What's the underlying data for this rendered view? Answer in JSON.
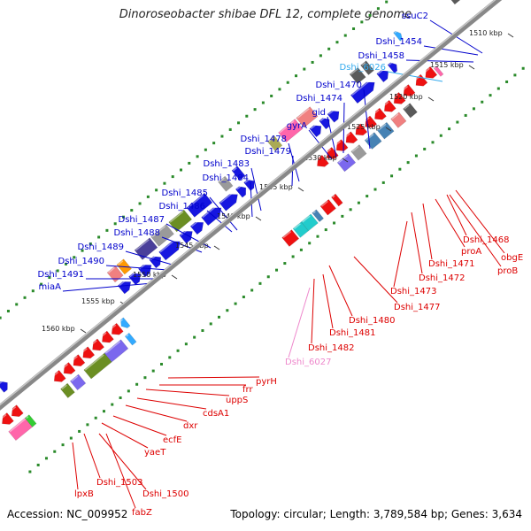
{
  "title": "Dinoroseobacter shibae DFL 12, complete genome",
  "footer": {
    "accession": "Accession: NC_009952",
    "summary": "Topology: circular; Length: 3,789,584 bp; Genes: 3,634"
  },
  "colors": {
    "forward_label": "#0000cc",
    "reverse_label": "#dd0000",
    "rna_forward_label": "#33aaee",
    "rna_reverse_label": "#ee88cc",
    "backbone": "#888888",
    "tick_dots": "#2a8a2a"
  },
  "scale_marks": [
    "1510 kbp",
    "1515 kbp",
    "1520 kbp",
    "1525 kbp",
    "1530 kbp",
    "1535 kbp",
    "1540 kbp",
    "1545 kbp",
    "1550 kbp",
    "1555 kbp",
    "1560 kbp"
  ],
  "upper_labels": [
    "ssuC2",
    "Dshi_1454",
    "Dshi_1458",
    "Dshi_6026",
    "Dshi_1470",
    "Dshi_1474",
    "gid",
    "gyrA",
    "Dshi_1478",
    "Dshi_1479",
    "Dshi_1483",
    "Dshi_1484",
    "Dshi_1485",
    "Dshi_1486",
    "Dshi_1487",
    "Dshi_1488",
    "Dshi_1489",
    "Dshi_1490",
    "Dshi_1491",
    "miaA"
  ],
  "lower_labels": [
    "Dshi_1468",
    "obgE",
    "proB",
    "proA",
    "Dshi_1471",
    "Dshi_1472",
    "Dshi_1473",
    "Dshi_1477",
    "Dshi_1480",
    "Dshi_1481",
    "Dshi_1482",
    "Dshi_6027",
    "pyrH",
    "frr",
    "uppS",
    "cdsA1",
    "dxr",
    "ecfE",
    "yaeT",
    "Dshi_1500",
    "Dshi_1503",
    "lpxB",
    "fabZ"
  ]
}
